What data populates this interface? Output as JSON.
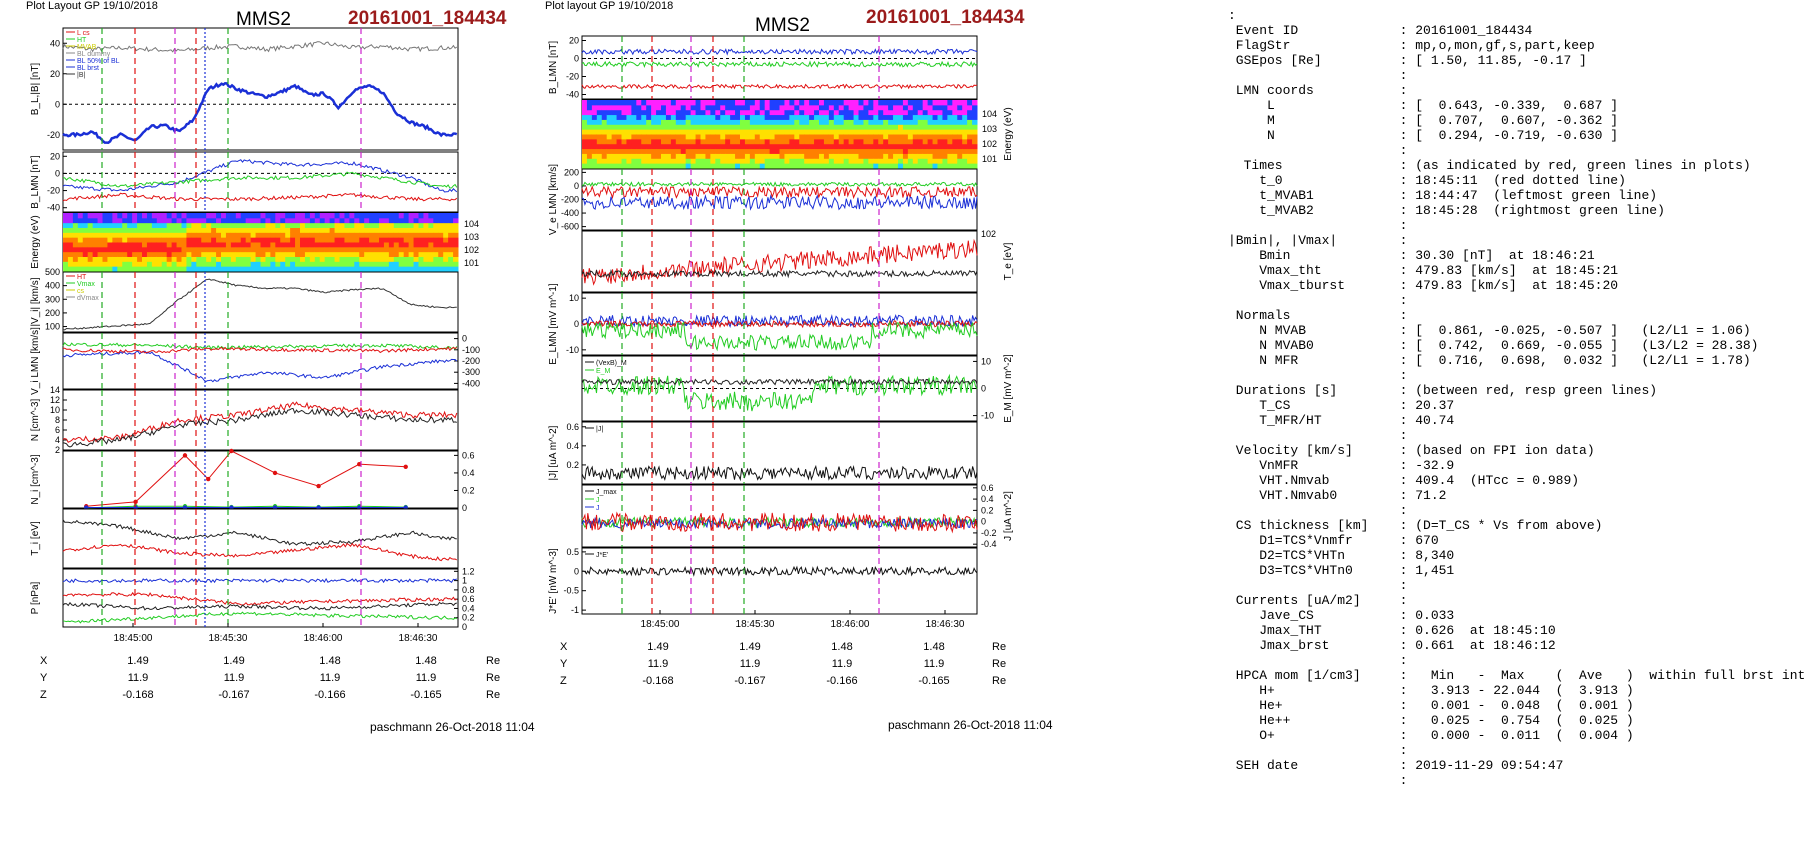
{
  "left": {
    "header": "Plot Layout GP 19/10/2018",
    "title": "MMS2",
    "event": "20161001_184434",
    "footer": "paschmann 26-Oct-2018 11:04",
    "time_ticks": [
      "18:45:00",
      "18:45:30",
      "18:46:00",
      "18:46:30"
    ],
    "coords": [
      {
        "label": "X",
        "values": [
          "1.49",
          "1.49",
          "1.48",
          "1.48"
        ],
        "unit": "Re"
      },
      {
        "label": "Y",
        "values": [
          "11.9",
          "11.9",
          "11.9",
          "11.9"
        ],
        "unit": "Re"
      },
      {
        "label": "Z",
        "values": [
          "-0.168",
          "-0.167",
          "-0.166",
          "-0.165"
        ],
        "unit": "Re"
      }
    ]
  },
  "right": {
    "header": "Plot layout GP 19/10/2018",
    "title": "MMS2",
    "event": "20161001_184434",
    "footer": "paschmann 26-Oct-2018 11:04",
    "time_ticks": [
      "18:45:00",
      "18:45:30",
      "18:46:00",
      "18:46:30"
    ],
    "coords": [
      {
        "label": "X",
        "values": [
          "1.49",
          "1.49",
          "1.48",
          "1.48"
        ],
        "unit": "Re"
      },
      {
        "label": "Y",
        "values": [
          "11.9",
          "11.9",
          "11.9",
          "11.9"
        ],
        "unit": "Re"
      },
      {
        "label": "Z",
        "values": [
          "-0.168",
          "-0.167",
          "-0.166",
          "-0.165"
        ],
        "unit": "Re"
      }
    ]
  },
  "info_lines": [
    ":",
    " Event ID             : 20161001_184434",
    " FlagStr              : mp,o,mon,gf,s,part,keep",
    " GSEpos [Re]          : [ 1.50, 11.85, -0.17 ]",
    "                      :",
    " LMN coords           :",
    "     L                : [  0.643, -0.339,  0.687 ]",
    "     M                : [  0.707,  0.607, -0.362 ]",
    "     N                : [  0.294, -0.719, -0.630 ]",
    "                      :",
    "  Times               : (as indicated by red, green lines in plots)",
    "    t_0               : 18:45:11  (red dotted line)",
    "    t_MVAB1           : 18:44:47  (leftmost green line)",
    "    t_MVAB2           : 18:45:28  (rightmost green line)",
    "                      :",
    "|Bmin|, |Vmax|        :",
    "    Bmin              : 30.30 [nT]  at 18:46:21",
    "    Vmax_tht          : 479.83 [km/s]  at 18:45:21",
    "    Vmax_tburst       : 479.83 [km/s]  at 18:45:20",
    "                      :",
    " Normals              :",
    "    N MVAB            : [  0.861, -0.025, -0.507 ]   (L2/L1 = 1.06)",
    "    N MVAB0           : [  0.742,  0.669, -0.055 ]   (L3/L2 = 28.38)",
    "    N MFR             : [  0.716,  0.698,  0.032 ]   (L2/L1 = 1.78)",
    "                      :",
    " Durations [s]        : (between red, resp green lines)",
    "    T_CS              : 20.37",
    "    T_MFR/HT          : 40.74",
    "                      :",
    " Velocity [km/s]      : (based on FPI ion data)",
    "    VnMFR             : -32.9",
    "    VHT.Nmvab         : 409.4  (HTcc = 0.989)",
    "    VHT.Nmvab0        : 71.2",
    "                      :",
    " CS thickness [km]    : (D=T_CS * Vs from above)",
    "    D1=TCS*Vnmfr      : 670",
    "    D2=TCS*VHTn       : 8,340",
    "    D3=TCS*VHTn0      : 1,451",
    "                      :",
    " Currents [uA/m2]     :",
    "    Jave_CS           : 0.033",
    "    Jmax_THT          : 0.626  at 18:45:10",
    "    Jmax_brst         : 0.661  at 18:46:12",
    "                      :",
    " HPCA mom [1/cm3]     :   Min   -  Max    (  Ave   )  within full brst int",
    "    H+                :   3.913 - 22.044  (  3.913 )",
    "    He+               :   0.001 -  0.048  (  0.001 )",
    "    He++              :   0.025 -  0.754  (  0.025 )",
    "    O+                :   0.000 -  0.011  (  0.004 )",
    "                      :",
    " SEH date             : 2019-11-29 09:54:47",
    "                      :"
  ],
  "chart_data": [
    {
      "type": "line",
      "title": "MMS2 20161001_184434",
      "x_unit": "UT",
      "xlim": [
        "18:44:34",
        "18:46:50"
      ],
      "panels": [
        {
          "id": "B_L_absB",
          "ylabel": "B_L,|B| [nT]",
          "ylim": [
            -30,
            50
          ],
          "ticks": [
            -20,
            0,
            20,
            40
          ],
          "legend": [
            "L  cs",
            "HT",
            "MVAB",
            "BL dummy",
            "BL 50% of BL",
            "BL brst",
            "|B|"
          ],
          "series": [
            {
              "name": "|B|",
              "color": "#777777",
              "x": [
                0,
                10,
                20,
                30,
                40,
                50,
                60,
                70,
                80,
                90,
                100,
                110,
                120,
                130
              ],
              "y": [
                38,
                36,
                37,
                36,
                35,
                37,
                38,
                36,
                38,
                40,
                37,
                38,
                36,
                37
              ]
            },
            {
              "name": "B_L",
              "color": "#1a2fd6",
              "x": [
                0,
                5,
                10,
                15,
                20,
                25,
                30,
                35,
                40,
                45,
                50,
                55,
                60,
                65,
                70,
                75,
                80,
                85,
                90,
                95,
                100,
                105,
                110,
                115,
                120,
                125,
                130
              ],
              "y": [
                -20,
                -20,
                -18,
                -25,
                -20,
                -24,
                -15,
                -14,
                -18,
                -10,
                10,
                14,
                10,
                7,
                5,
                8,
                12,
                6,
                7,
                -2,
                9,
                12,
                8,
                -6,
                -12,
                -15,
                -20
              ]
            }
          ]
        },
        {
          "id": "B_LMN",
          "ylabel": "B_LMN [nT]",
          "ylim": [
            -45,
            25
          ],
          "ticks": [
            -40,
            -20,
            0,
            20
          ],
          "series": [
            {
              "name": "B_L",
              "color": "#1a2fd6",
              "x": [
                0,
                20,
                40,
                60,
                80,
                100,
                120,
                130
              ],
              "y": [
                -15,
                -20,
                -10,
                15,
                10,
                12,
                -5,
                -20
              ]
            },
            {
              "name": "B_M",
              "color": "#22cc22",
              "x": [
                0,
                20,
                40,
                60,
                80,
                100,
                120,
                130
              ],
              "y": [
                -5,
                -15,
                -10,
                -5,
                -5,
                0,
                -10,
                -15
              ]
            },
            {
              "name": "B_N",
              "color": "#e01010",
              "x": [
                0,
                20,
                40,
                60,
                80,
                100,
                120,
                130
              ],
              "y": [
                -30,
                -25,
                -30,
                -30,
                -28,
                -25,
                -30,
                -30
              ]
            }
          ]
        },
        {
          "id": "ion_spectrogram",
          "ylabel": "Energy (eV)",
          "type": "heatmap",
          "ticks": [
            "10^1",
            "10^2",
            "10^3",
            "10^4"
          ]
        },
        {
          "id": "V_i",
          "ylabel": "|V_i| [km/s]",
          "ylim": [
            60,
            500
          ],
          "ticks": [
            100,
            200,
            300,
            400,
            500
          ],
          "legend": [
            "HT",
            "Vmax",
            "cs",
            "dVmax"
          ],
          "series": [
            {
              "name": "|V_i|",
              "color": "#333333",
              "x": [
                0,
                15,
                30,
                40,
                50,
                60,
                70,
                80,
                90,
                100,
                110,
                120,
                130
              ],
              "y": [
                80,
                100,
                120,
                300,
                450,
                400,
                380,
                380,
                350,
                370,
                380,
                260,
                240
              ]
            }
          ]
        },
        {
          "id": "V_i_LMN",
          "ylabel": "V_i LMN [km/s]",
          "ylim": [
            -450,
            50
          ],
          "ticks": [
            0,
            -100,
            -200,
            -300,
            -400
          ],
          "series": [
            {
              "name": "V_L",
              "color": "#1a2fd6",
              "x": [
                0,
                30,
                40,
                50,
                70,
                90,
                110,
                130
              ],
              "y": [
                -150,
                -120,
                -250,
                -380,
                -300,
                -350,
                -250,
                -200
              ]
            },
            {
              "name": "V_M",
              "color": "#22cc22",
              "x": [
                0,
                30,
                50,
                80,
                110,
                130
              ],
              "y": [
                -50,
                -60,
                -80,
                -70,
                -60,
                -80
              ]
            },
            {
              "name": "V_N",
              "color": "#e01010",
              "x": [
                0,
                30,
                50,
                80,
                110,
                130
              ],
              "y": [
                -100,
                -120,
                -90,
                -100,
                -110,
                -90
              ]
            }
          ]
        },
        {
          "id": "density",
          "ylabel": "N [cm^-3]",
          "ylim": [
            2,
            14
          ],
          "ticks": [
            2,
            4,
            6,
            8,
            10,
            12,
            14
          ],
          "series": [
            {
              "name": "Ne",
              "color": "#e01010",
              "x": [
                0,
                20,
                40,
                60,
                80,
                100,
                120,
                130
              ],
              "y": [
                4,
                4.5,
                8,
                9,
                11,
                10,
                9,
                9
              ]
            },
            {
              "name": "Ni",
              "color": "#222222",
              "x": [
                0,
                20,
                40,
                60,
                80,
                100,
                120,
                130
              ],
              "y": [
                3,
                4,
                7,
                8,
                10,
                9,
                8,
                8
              ]
            }
          ]
        },
        {
          "id": "hpca_density",
          "ylabel": "N_i [cm^-3]",
          "ylim": [
            0,
            0.65
          ],
          "ticks": [
            0,
            0.2,
            0.4,
            0.6
          ],
          "series": [
            {
              "name": "N He+",
              "color": "#22cc22",
              "x": [
                8,
                25,
                42,
                58,
                73,
                88,
                102,
                118
              ],
              "y": [
                0.002,
                0.02,
                0.02,
                0.01,
                0.02,
                0.01,
                0.02,
                0.01
              ]
            },
            {
              "name": "N He++",
              "color": "#e01010",
              "x": [
                8,
                25,
                42,
                50,
                58,
                73,
                88,
                102,
                118
              ],
              "y": [
                0.02,
                0.07,
                0.6,
                0.33,
                0.65,
                0.4,
                0.25,
                0.5,
                0.47
              ]
            },
            {
              "name": "N O+",
              "color": "#1a2fd6",
              "x": [
                8,
                25,
                42,
                58,
                73,
                88,
                102,
                118
              ],
              "y": [
                0.005,
                0.005,
                0.005,
                0.005,
                0.005,
                0.005,
                0.005,
                0.005
              ]
            }
          ]
        },
        {
          "id": "T_i",
          "ylabel": "T_i [eV]",
          "series": [
            {
              "name": "Ti_perp",
              "color": "#222222",
              "x": [
                0,
                20,
                40,
                60,
                80,
                100,
                120,
                130
              ],
              "y": [
                80,
                70,
                50,
                60,
                40,
                45,
                60,
                50
              ]
            },
            {
              "name": "Ti_par",
              "color": "#e01010",
              "x": [
                0,
                20,
                40,
                60,
                80,
                100,
                120,
                130
              ],
              "y": [
                30,
                40,
                25,
                20,
                30,
                40,
                20,
                15
              ]
            }
          ]
        },
        {
          "id": "pressure",
          "ylabel": "P [nPa]",
          "ylim": [
            0,
            1.25
          ],
          "ticks": [
            0,
            0.2,
            0.4,
            0.6,
            0.8,
            1.0,
            1.2
          ],
          "series": [
            {
              "name": "P_B",
              "color": "#1a2fd6",
              "x": [
                0,
                30,
                60,
                90,
                130
              ],
              "y": [
                1.0,
                1.0,
                1.0,
                1.0,
                1.0
              ]
            },
            {
              "name": "P_i",
              "color": "#e01010",
              "x": [
                0,
                30,
                60,
                90,
                130
              ],
              "y": [
                0.7,
                0.7,
                0.5,
                0.55,
                0.6
              ]
            },
            {
              "name": "P_e",
              "color": "#222222",
              "x": [
                0,
                30,
                60,
                90,
                130
              ],
              "y": [
                0.5,
                0.4,
                0.45,
                0.4,
                0.5
              ]
            },
            {
              "name": "P_tot",
              "color": "#22cc22",
              "x": [
                0,
                30,
                60,
                90,
                130
              ],
              "y": [
                0.1,
                0.2,
                0.3,
                0.25,
                0.2
              ]
            }
          ]
        }
      ]
    },
    {
      "type": "line",
      "title": "MMS2 20161001_184434",
      "x_unit": "UT",
      "xlim": [
        "18:44:34",
        "18:46:50"
      ],
      "panels": [
        {
          "id": "B_LMN_r",
          "ylabel": "B_LMN [nT]",
          "ylim": [
            -45,
            25
          ],
          "ticks": [
            -40,
            -20,
            0,
            20
          ]
        },
        {
          "id": "electron_spectrogram",
          "ylabel": "Energy (eV)",
          "type": "heatmap",
          "ticks": [
            "10^1",
            "10^2",
            "10^3",
            "10^4"
          ]
        },
        {
          "id": "V_e_LMN",
          "ylabel": "V_e LMN [km/s]",
          "ylim": [
            -650,
            250
          ],
          "ticks": [
            200,
            0,
            -200,
            -400,
            -600
          ]
        },
        {
          "id": "T_e",
          "ylabel": "T_e [eV]",
          "ticks": [
            "10^2"
          ]
        },
        {
          "id": "E_LMN",
          "ylabel": "E_LMN [mV m^-1]",
          "ylim": [
            -12,
            12
          ],
          "ticks": [
            -10,
            0,
            10
          ]
        },
        {
          "id": "E_M",
          "ylabel": "E_M [mV m^-2]",
          "ylim": [
            -12,
            12
          ],
          "ticks": [
            -10,
            0,
            10
          ],
          "legend": [
            "(VexB)_M",
            "E_M"
          ]
        },
        {
          "id": "J_abs",
          "ylabel": "|J| [uA m^-2]",
          "ylim": [
            0,
            0.65
          ],
          "ticks": [
            0.2,
            0.4,
            0.6
          ],
          "legend": [
            "|J|"
          ]
        },
        {
          "id": "J_comp",
          "ylabel": "J [uA m^-2]",
          "ylim": [
            -0.45,
            0.65
          ],
          "ticks": [
            -0.4,
            -0.2,
            0,
            0.2,
            0.4,
            0.6
          ],
          "legend": [
            "J_max",
            "J",
            "J"
          ]
        },
        {
          "id": "JdotE",
          "ylabel": "J*E' [nW m^-3]",
          "ylim": [
            -1.1,
            0.6
          ],
          "ticks": [
            -1.0,
            -0.5,
            0.0,
            0.5
          ],
          "legend": [
            "J*E'"
          ]
        }
      ]
    }
  ]
}
